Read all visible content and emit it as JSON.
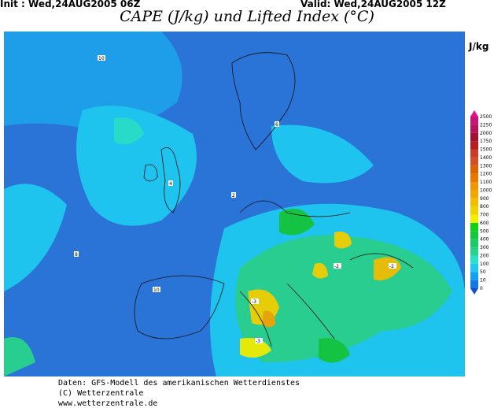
{
  "header": {
    "init": "Init : Wed,24AUG2005 06Z",
    "valid": "Valid: Wed,24AUG2005 12Z",
    "title": "CAPE (J/kg) und Lifted Index (°C)"
  },
  "legend": {
    "unit": "J/kg",
    "levels": [
      "0",
      "10",
      "50",
      "100",
      "200",
      "300",
      "400",
      "500",
      "600",
      "700",
      "800",
      "900",
      "1000",
      "1100",
      "1200",
      "1300",
      "1400",
      "1500",
      "1750",
      "2000",
      "2250",
      "2500"
    ],
    "colors": [
      "#1478e6",
      "#14a0f0",
      "#1ec8f0",
      "#28e0c8",
      "#28d28c",
      "#1ec864",
      "#14c83c",
      "#10d010",
      "#f0f000",
      "#f0d200",
      "#f0c000",
      "#f0a800",
      "#f09600",
      "#e67800",
      "#dc6400",
      "#d25028",
      "#c83c28",
      "#b41e1e",
      "#a01432",
      "#b4145a",
      "#c81478"
    ],
    "below_color": "#1450c8",
    "above_color": "#e6148c"
  },
  "map": {
    "background_color": "#2a74d8",
    "li_labels": [
      {
        "t": "10",
        "r": "nw"
      },
      {
        "t": "8",
        "r": "atlantic"
      },
      {
        "t": "6",
        "r": "scandinavia"
      },
      {
        "t": "4",
        "r": "north-sea"
      },
      {
        "t": "2",
        "r": "germany"
      },
      {
        "t": "-2",
        "r": "balkans"
      },
      {
        "t": "-3",
        "r": "italy"
      },
      {
        "t": "-2",
        "r": "black-sea"
      },
      {
        "t": "-3",
        "r": "mediterranean"
      },
      {
        "t": "10",
        "r": "iberia"
      }
    ]
  },
  "footer": {
    "line1": "Daten: GFS-Modell des amerikanischen Wetterdienstes",
    "line2": "(C) Wetterzentrale",
    "line3": "www.wetterzentrale.de"
  }
}
